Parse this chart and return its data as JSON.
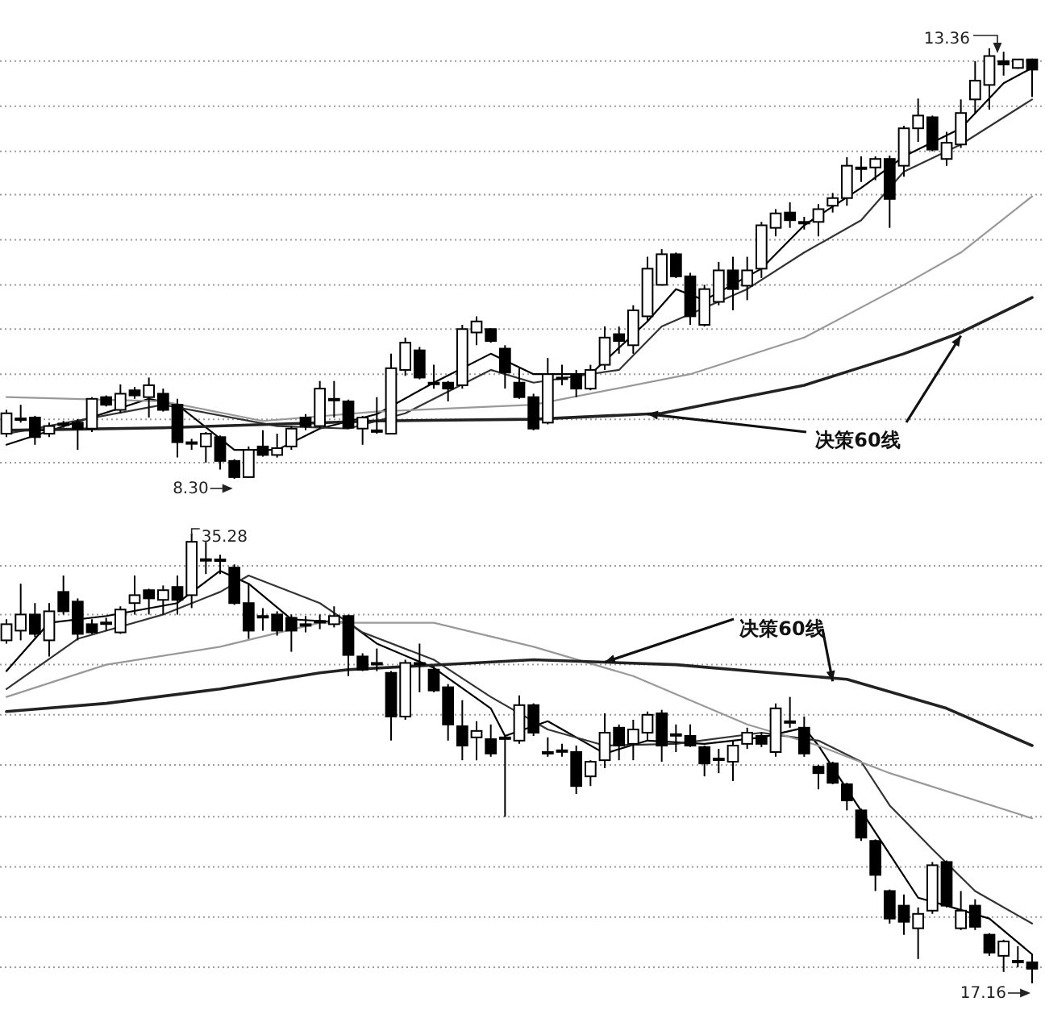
{
  "chart_data": [
    {
      "type": "candlestick",
      "categories": [
        null,
        null,
        null,
        null,
        null,
        null,
        null,
        null,
        null,
        null,
        null,
        null,
        null,
        null,
        null,
        null,
        null,
        null,
        null,
        null,
        null,
        null,
        null,
        null,
        null,
        null,
        null,
        null,
        null,
        null,
        null,
        null,
        null,
        null,
        null,
        null,
        null,
        null,
        null,
        null,
        null,
        null,
        null,
        null,
        null,
        null,
        null,
        null,
        null,
        null,
        null,
        null,
        null,
        null,
        null,
        null,
        null,
        null,
        null,
        null,
        null,
        null,
        null,
        null,
        null,
        null,
        null,
        null,
        null,
        null,
        null,
        null,
        null
      ],
      "ohlc": [
        [
          8.83,
          9.11,
          8.79,
          9.07
        ],
        [
          9.0,
          9.17,
          8.96,
          9.01
        ],
        [
          9.02,
          9.04,
          8.7,
          8.79
        ],
        [
          8.83,
          8.96,
          8.79,
          8.92
        ],
        [
          8.94,
          8.98,
          8.9,
          8.95
        ],
        [
          8.96,
          9.0,
          8.64,
          8.89
        ],
        [
          8.89,
          9.26,
          8.85,
          9.24
        ],
        [
          9.26,
          9.28,
          9.15,
          9.17
        ],
        [
          9.11,
          9.41,
          9.07,
          9.3
        ],
        [
          9.34,
          9.38,
          9.24,
          9.28
        ],
        [
          9.26,
          9.49,
          9.02,
          9.4
        ],
        [
          9.3,
          9.36,
          9.09,
          9.11
        ],
        [
          9.17,
          9.24,
          8.55,
          8.73
        ],
        [
          8.73,
          8.77,
          8.64,
          8.72
        ],
        [
          8.68,
          8.85,
          8.49,
          8.83
        ],
        [
          8.79,
          8.81,
          8.41,
          8.51
        ],
        [
          8.51,
          8.53,
          8.3,
          8.32
        ],
        [
          8.32,
          8.68,
          8.31,
          8.64
        ],
        [
          8.68,
          8.87,
          8.56,
          8.58
        ],
        [
          8.58,
          8.83,
          8.55,
          8.66
        ],
        [
          8.68,
          8.92,
          8.64,
          8.89
        ],
        [
          9.02,
          9.06,
          8.87,
          8.92
        ],
        [
          8.92,
          9.45,
          8.9,
          9.36
        ],
        [
          9.24,
          9.45,
          9.02,
          9.24
        ],
        [
          9.21,
          9.23,
          8.89,
          8.9
        ],
        [
          8.89,
          9.04,
          8.7,
          9.02
        ],
        [
          8.87,
          9.26,
          8.83,
          8.87
        ],
        [
          8.83,
          9.77,
          8.82,
          9.6
        ],
        [
          9.58,
          9.96,
          9.51,
          9.9
        ],
        [
          9.81,
          9.85,
          9.47,
          9.49
        ],
        [
          9.43,
          9.64,
          9.36,
          9.43
        ],
        [
          9.43,
          9.45,
          9.21,
          9.36
        ],
        [
          9.4,
          10.11,
          9.36,
          10.06
        ],
        [
          10.02,
          10.21,
          9.87,
          10.15
        ],
        [
          10.06,
          10.07,
          9.9,
          9.92
        ],
        [
          9.83,
          9.87,
          9.36,
          9.55
        ],
        [
          9.43,
          9.6,
          9.24,
          9.26
        ],
        [
          9.26,
          9.3,
          8.87,
          8.89
        ],
        [
          8.96,
          9.72,
          8.94,
          9.53
        ],
        [
          9.49,
          9.64,
          9.4,
          9.49
        ],
        [
          9.53,
          9.58,
          9.26,
          9.36
        ],
        [
          9.36,
          9.64,
          9.34,
          9.58
        ],
        [
          9.64,
          10.09,
          9.58,
          9.96
        ],
        [
          10.0,
          10.09,
          9.77,
          9.92
        ],
        [
          9.87,
          10.34,
          9.77,
          10.28
        ],
        [
          10.21,
          10.91,
          10.15,
          10.77
        ],
        [
          10.58,
          11.0,
          10.57,
          10.94
        ],
        [
          10.94,
          10.96,
          10.66,
          10.68
        ],
        [
          10.68,
          10.72,
          10.11,
          10.21
        ],
        [
          10.11,
          10.58,
          10.09,
          10.53
        ],
        [
          10.38,
          10.85,
          10.34,
          10.75
        ],
        [
          10.75,
          10.91,
          10.28,
          10.53
        ],
        [
          10.57,
          10.91,
          10.4,
          10.75
        ],
        [
          10.77,
          11.32,
          10.66,
          11.28
        ],
        [
          11.25,
          11.47,
          11.15,
          11.42
        ],
        [
          11.43,
          11.55,
          11.25,
          11.34
        ],
        [
          11.32,
          11.38,
          11.23,
          11.32
        ],
        [
          11.32,
          11.53,
          11.15,
          11.47
        ],
        [
          11.51,
          11.66,
          11.43,
          11.6
        ],
        [
          11.6,
          12.08,
          11.51,
          11.98
        ],
        [
          11.96,
          12.09,
          11.79,
          11.96
        ],
        [
          11.96,
          12.09,
          11.81,
          12.06
        ],
        [
          12.06,
          12.1,
          11.25,
          11.59
        ],
        [
          11.98,
          12.45,
          11.85,
          12.42
        ],
        [
          12.42,
          12.77,
          12.26,
          12.57
        ],
        [
          12.55,
          12.57,
          12.15,
          12.17
        ],
        [
          12.06,
          12.38,
          11.98,
          12.25
        ],
        [
          12.23,
          12.76,
          12.19,
          12.6
        ],
        [
          12.76,
          13.21,
          12.6,
          12.98
        ],
        [
          12.93,
          13.36,
          12.64,
          13.27
        ],
        [
          13.21,
          13.32,
          13.04,
          13.17
        ],
        [
          13.13,
          13.23,
          13.12,
          13.23
        ],
        [
          13.23,
          13.24,
          12.79,
          13.11
        ]
      ],
      "series": [
        {
          "type": "line",
          "color": "#000000",
          "values": [
            8.7,
            null,
            null,
            null,
            null,
            null,
            null,
            null,
            null,
            null,
            9.24,
            null,
            9.17,
            null,
            null,
            null,
            8.64,
            null,
            null,
            8.64,
            null,
            null,
            8.89,
            null,
            null,
            null,
            9.06,
            null,
            null,
            null,
            9.43,
            null,
            null,
            null,
            9.77,
            null,
            null,
            9.53,
            null,
            null,
            null,
            9.53,
            null,
            null,
            null,
            10.15,
            null,
            10.53,
            null,
            10.4,
            null,
            null,
            null,
            10.77,
            null,
            null,
            11.28,
            null,
            null,
            null,
            11.72,
            null,
            null,
            12.09,
            null,
            null,
            null,
            12.42,
            null,
            null,
            12.95,
            null,
            13.13
          ]
        },
        {
          "type": "line",
          "color": "#333333",
          "values": [
            8.83,
            null,
            null,
            null,
            null,
            null,
            null,
            null,
            null,
            null,
            null,
            9.17,
            null,
            null,
            null,
            null,
            null,
            null,
            null,
            8.92,
            null,
            null,
            null,
            null,
            8.89,
            null,
            null,
            null,
            9.07,
            null,
            null,
            null,
            null,
            null,
            9.58,
            null,
            null,
            9.43,
            null,
            null,
            null,
            null,
            null,
            9.58,
            null,
            null,
            10.09,
            null,
            null,
            null,
            null,
            null,
            10.53,
            null,
            null,
            null,
            10.96,
            null,
            null,
            null,
            11.34,
            null,
            null,
            11.91,
            null,
            null,
            null,
            12.23,
            null,
            null,
            null,
            null,
            12.76
          ]
        },
        {
          "type": "line",
          "color": "#999999",
          "values": [
            9.26,
            null,
            null,
            null,
            null,
            null,
            null,
            null,
            null,
            null,
            null,
            9.21,
            null,
            null,
            null,
            null,
            null,
            null,
            8.98,
            null,
            null,
            null,
            null,
            null,
            null,
            null,
            9.09,
            null,
            null,
            null,
            null,
            null,
            null,
            null,
            null,
            null,
            null,
            9.17,
            null,
            null,
            null,
            null,
            null,
            null,
            null,
            null,
            null,
            null,
            9.53,
            null,
            null,
            null,
            null,
            null,
            null,
            null,
            9.96,
            null,
            null,
            null,
            null,
            null,
            null,
            10.58,
            null,
            null,
            null,
            10.96,
            null,
            null,
            null,
            null,
            11.62
          ]
        },
        {
          "type": "line",
          "color": "#222222",
          "values": [
            8.87,
            null,
            null,
            null,
            null,
            null,
            null,
            null,
            null,
            null,
            null,
            8.9,
            null,
            null,
            null,
            null,
            null,
            null,
            null,
            null,
            null,
            null,
            null,
            null,
            null,
            null,
            8.98,
            null,
            null,
            null,
            null,
            null,
            null,
            null,
            null,
            null,
            null,
            9.0,
            null,
            null,
            null,
            null,
            null,
            null,
            null,
            null,
            9.07,
            null,
            null,
            null,
            null,
            null,
            null,
            null,
            null,
            null,
            9.4,
            null,
            null,
            null,
            null,
            null,
            null,
            9.77,
            null,
            null,
            null,
            10.02,
            null,
            null,
            null,
            null,
            10.43
          ]
        }
      ],
      "yticks": [
        {
          "value": 8.49,
          "label": null
        },
        {
          "value": 9.0,
          "label": null
        },
        {
          "value": 9.53,
          "label": null
        },
        {
          "value": 10.06,
          "label": null
        },
        {
          "value": 10.58,
          "label": null
        },
        {
          "value": 11.11,
          "label": null
        },
        {
          "value": 11.64,
          "label": null
        },
        {
          "value": 12.15,
          "label": null
        },
        {
          "value": 12.68,
          "label": null
        },
        {
          "value": 13.21,
          "label": null
        }
      ],
      "grid": "y",
      "annotations": [
        "13.36",
        "8.30",
        "决策60线"
      ]
    },
    {
      "type": "candlestick",
      "categories": [
        null,
        null,
        null,
        null,
        null,
        null,
        null,
        null,
        null,
        null,
        null,
        null,
        null,
        null,
        null,
        null,
        null,
        null,
        null,
        null,
        null,
        null,
        null,
        null,
        null,
        null,
        null,
        null,
        null,
        null,
        null,
        null,
        null,
        null,
        null,
        null,
        null,
        null,
        null,
        null,
        null,
        null,
        null,
        null,
        null,
        null,
        null,
        null,
        null,
        null,
        null,
        null,
        null,
        null,
        null,
        null,
        null,
        null,
        null,
        null,
        null,
        null,
        null,
        null,
        null,
        null,
        null,
        null,
        null,
        null,
        null,
        null,
        null
      ],
      "ohlc": [
        [
          30.98,
          31.83,
          30.85,
          31.63
        ],
        [
          31.37,
          33.26,
          30.98,
          32.02
        ],
        [
          32.02,
          32.48,
          31.11,
          31.24
        ],
        [
          30.98,
          32.48,
          30.33,
          32.15
        ],
        [
          32.93,
          33.59,
          32.02,
          32.15
        ],
        [
          32.54,
          32.67,
          30.98,
          31.24
        ],
        [
          31.63,
          31.83,
          31.24,
          31.3
        ],
        [
          31.69,
          31.89,
          31.37,
          31.7
        ],
        [
          31.3,
          32.35,
          31.24,
          32.22
        ],
        [
          32.48,
          33.59,
          32.02,
          32.8
        ],
        [
          33.0,
          33.06,
          32.02,
          32.67
        ],
        [
          32.61,
          33.19,
          32.02,
          33.0
        ],
        [
          33.13,
          33.59,
          32.02,
          32.61
        ],
        [
          32.8,
          35.28,
          32.28,
          34.95
        ],
        [
          34.24,
          34.95,
          33.65,
          34.25
        ],
        [
          34.24,
          34.43,
          33.65,
          34.24
        ],
        [
          33.91,
          34.04,
          32.41,
          32.48
        ],
        [
          32.48,
          33.26,
          31.04,
          31.37
        ],
        [
          31.96,
          32.28,
          31.37,
          31.96
        ],
        [
          32.02,
          32.15,
          31.17,
          31.37
        ],
        [
          31.89,
          32.02,
          30.52,
          31.37
        ],
        [
          31.63,
          31.96,
          31.3,
          31.63
        ],
        [
          31.76,
          32.02,
          31.43,
          31.76
        ],
        [
          31.63,
          32.35,
          31.5,
          31.96
        ],
        [
          31.96,
          32.02,
          29.54,
          30.39
        ],
        [
          30.33,
          30.46,
          29.74,
          29.8
        ],
        [
          30.07,
          30.65,
          29.74,
          30.07
        ],
        [
          29.67,
          29.74,
          26.94,
          27.91
        ],
        [
          27.91,
          30.2,
          27.78,
          30.07
        ],
        [
          30.07,
          30.85,
          28.89,
          30.07
        ],
        [
          29.8,
          29.93,
          28.89,
          28.96
        ],
        [
          29.09,
          29.22,
          26.94,
          27.59
        ],
        [
          27.52,
          28.57,
          26.15,
          26.74
        ],
        [
          27.07,
          27.72,
          26.15,
          27.33
        ],
        [
          27.0,
          27.59,
          26.29,
          26.42
        ],
        [
          27.07,
          27.13,
          23.87,
          27.07
        ],
        [
          26.94,
          28.76,
          26.81,
          28.37
        ],
        [
          28.37,
          28.44,
          27.13,
          27.26
        ],
        [
          26.48,
          27.07,
          26.29,
          26.48
        ],
        [
          26.55,
          26.81,
          26.29,
          26.55
        ],
        [
          26.48,
          26.74,
          24.79,
          25.11
        ],
        [
          25.5,
          26.15,
          25.11,
          26.09
        ],
        [
          26.15,
          28.04,
          25.83,
          27.26
        ],
        [
          27.46,
          27.59,
          26.15,
          26.74
        ],
        [
          26.81,
          27.78,
          26.15,
          27.39
        ],
        [
          27.26,
          28.11,
          26.94,
          27.98
        ],
        [
          28.04,
          28.18,
          26.09,
          26.74
        ],
        [
          27.2,
          27.59,
          26.48,
          27.2
        ],
        [
          27.13,
          27.59,
          26.68,
          26.74
        ],
        [
          26.68,
          26.74,
          25.5,
          26.02
        ],
        [
          26.22,
          26.61,
          25.63,
          26.22
        ],
        [
          26.09,
          26.94,
          25.31,
          26.74
        ],
        [
          26.81,
          27.46,
          26.61,
          27.26
        ],
        [
          27.13,
          27.26,
          26.68,
          26.81
        ],
        [
          26.48,
          28.44,
          26.29,
          28.24
        ],
        [
          27.72,
          28.7,
          27.46,
          27.72
        ],
        [
          27.46,
          27.91,
          26.29,
          26.42
        ],
        [
          25.89,
          25.96,
          24.98,
          25.63
        ],
        [
          26.02,
          26.09,
          25.18,
          25.24
        ],
        [
          25.18,
          25.24,
          24.13,
          24.53
        ],
        [
          24.13,
          24.2,
          22.9,
          23.03
        ],
        [
          22.9,
          22.96,
          20.88,
          21.53
        ],
        [
          20.88,
          20.94,
          19.57,
          19.77
        ],
        [
          20.29,
          20.74,
          19.12,
          19.64
        ],
        [
          19.38,
          20.22,
          18.14,
          19.96
        ],
        [
          20.09,
          22.05,
          19.96,
          21.92
        ],
        [
          22.05,
          22.11,
          20.22,
          20.29
        ],
        [
          19.38,
          20.88,
          19.31,
          20.09
        ],
        [
          20.29,
          20.55,
          19.31,
          19.44
        ],
        [
          19.12,
          19.18,
          18.27,
          18.4
        ],
        [
          18.27,
          18.92,
          17.62,
          18.85
        ],
        [
          18.07,
          18.66,
          17.81,
          18.07
        ],
        [
          18.01,
          18.33,
          17.16,
          17.75
        ]
      ],
      "series": [
        {
          "type": "line",
          "color": "#000000",
          "values": [
            29.74,
            null,
            null,
            31.69,
            null,
            null,
            null,
            31.96,
            null,
            null,
            null,
            null,
            32.48,
            null,
            null,
            33.78,
            null,
            33.26,
            null,
            null,
            31.83,
            null,
            null,
            null,
            31.69,
            null,
            30.85,
            null,
            null,
            null,
            29.87,
            null,
            null,
            null,
            28.24,
            27.13,
            null,
            null,
            27.72,
            null,
            null,
            null,
            26.42,
            null,
            null,
            26.94,
            null,
            null,
            null,
            26.81,
            null,
            null,
            null,
            27.07,
            null,
            null,
            27.46,
            26.74,
            null,
            24.98,
            null,
            null,
            22.37,
            null,
            20.61,
            null,
            20.29,
            null,
            null,
            19.77,
            null,
            null,
            18.33
          ]
        },
        {
          "type": "line",
          "color": "#333333",
          "values": [
            29.02,
            null,
            null,
            null,
            null,
            31.04,
            null,
            null,
            null,
            null,
            null,
            32.02,
            null,
            null,
            null,
            32.93,
            null,
            33.59,
            null,
            null,
            null,
            null,
            32.48,
            null,
            null,
            31.3,
            null,
            null,
            null,
            null,
            30.2,
            null,
            null,
            null,
            28.7,
            null,
            null,
            null,
            27.39,
            null,
            null,
            null,
            26.74,
            null,
            null,
            null,
            null,
            26.81,
            null,
            null,
            null,
            null,
            null,
            27.26,
            null,
            null,
            null,
            26.94,
            null,
            null,
            26.09,
            null,
            24.33,
            null,
            null,
            22.57,
            null,
            null,
            20.88,
            null,
            null,
            null,
            19.57
          ]
        },
        {
          "type": "line",
          "color": "#999999",
          "values": [
            28.7,
            null,
            null,
            null,
            null,
            null,
            null,
            30.0,
            null,
            null,
            null,
            null,
            null,
            null,
            null,
            30.72,
            null,
            null,
            null,
            null,
            null,
            null,
            31.69,
            null,
            null,
            null,
            null,
            null,
            null,
            null,
            31.69,
            null,
            null,
            null,
            null,
            null,
            null,
            30.72,
            null,
            null,
            null,
            null,
            null,
            null,
            29.54,
            null,
            null,
            null,
            null,
            null,
            null,
            null,
            27.59,
            null,
            null,
            null,
            null,
            26.74,
            null,
            null,
            null,
            null,
            25.63,
            null,
            null,
            null,
            null,
            null,
            null,
            null,
            null,
            null,
            23.81
          ]
        },
        {
          "type": "line",
          "color": "#222222",
          "values": [
            28.11,
            null,
            null,
            null,
            null,
            null,
            null,
            28.44,
            null,
            null,
            null,
            null,
            null,
            null,
            null,
            29.02,
            null,
            null,
            null,
            null,
            null,
            null,
            29.67,
            null,
            29.8,
            null,
            null,
            null,
            null,
            null,
            null,
            null,
            null,
            null,
            null,
            null,
            null,
            30.2,
            null,
            null,
            null,
            null,
            null,
            null,
            null,
            null,
            null,
            30.0,
            null,
            null,
            null,
            null,
            null,
            null,
            null,
            null,
            null,
            null,
            null,
            29.41,
            null,
            null,
            null,
            null,
            null,
            null,
            28.24,
            null,
            null,
            null,
            null,
            null,
            26.74
          ]
        }
      ],
      "yticks": [
        {
          "value": 17.81,
          "label": null
        },
        {
          "value": 19.83,
          "label": null
        },
        {
          "value": 21.85,
          "label": null
        },
        {
          "value": 23.87,
          "label": null
        },
        {
          "value": 25.96,
          "label": null
        },
        {
          "value": 27.98,
          "label": null
        },
        {
          "value": 30.0,
          "label": null
        },
        {
          "value": 32.02,
          "label": null
        },
        {
          "value": 33.98,
          "label": null
        }
      ],
      "grid": "y",
      "annotations": [
        "35.28",
        "决策60线",
        "17.16"
      ]
    }
  ]
}
